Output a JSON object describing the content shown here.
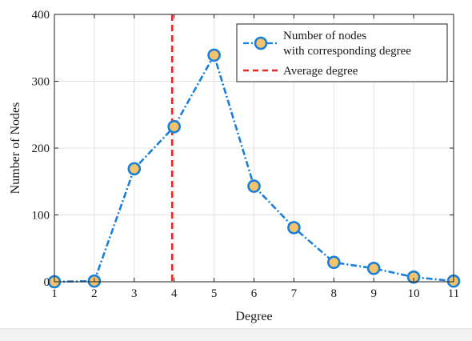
{
  "chart_data": {
    "type": "line",
    "xlabel": "Degree",
    "ylabel": "Number of Nodes",
    "xlim": [
      1,
      11
    ],
    "ylim": [
      0,
      400
    ],
    "xticks": [
      "1",
      "2",
      "3",
      "4",
      "5",
      "6",
      "7",
      "8",
      "9",
      "10",
      "11"
    ],
    "yticks": [
      "0",
      "100",
      "200",
      "300",
      "400"
    ],
    "grid": true,
    "legend_position": "top-right",
    "series": [
      {
        "name": "Number of nodes",
        "name_line2": "with corresponding degree",
        "style": "dash-dot with circle markers",
        "color": "#1a7fd6",
        "marker_fill": "#f3c36e",
        "x": [
          1,
          2,
          3,
          4,
          5,
          6,
          7,
          8,
          9,
          10,
          11
        ],
        "y": [
          0,
          1,
          169,
          232,
          339,
          143,
          81,
          29,
          20,
          7,
          1
        ]
      },
      {
        "name": "Average degree",
        "style": "vertical dashed line",
        "color": "#e02a2a",
        "x": 3.95
      }
    ]
  }
}
